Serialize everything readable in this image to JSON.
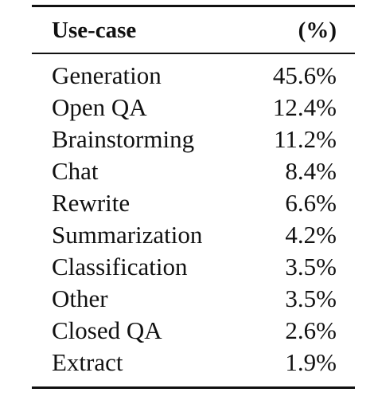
{
  "table": {
    "header": [
      "Use-case",
      "(%)"
    ],
    "rows": [
      [
        "Generation",
        "45.6%"
      ],
      [
        "Open QA",
        "12.4%"
      ],
      [
        "Brainstorming",
        "11.2%"
      ],
      [
        "Chat",
        "8.4%"
      ],
      [
        "Rewrite",
        "6.6%"
      ],
      [
        "Summarization",
        "4.2%"
      ],
      [
        "Classification",
        "3.5%"
      ],
      [
        "Other",
        "3.5%"
      ],
      [
        "Closed QA",
        "2.6%"
      ],
      [
        "Extract",
        "1.9%"
      ]
    ]
  }
}
